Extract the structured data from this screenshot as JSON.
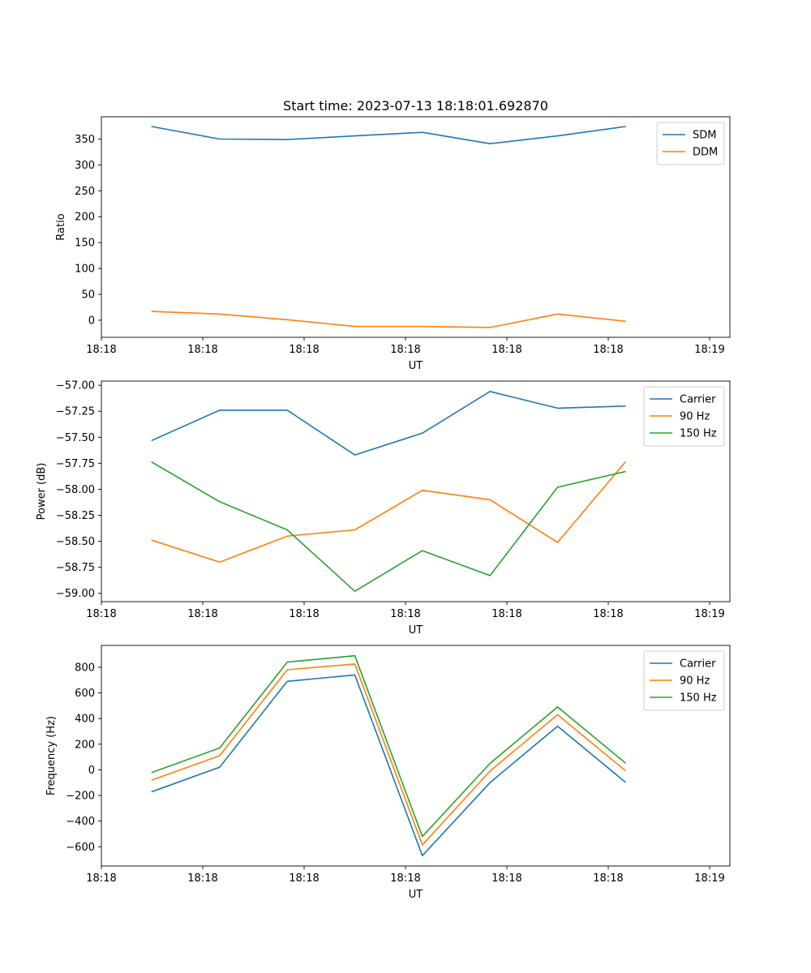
{
  "figure_title": "Start time: 2023-07-13 18:18:01.692870",
  "chart_data": [
    {
      "type": "line",
      "title": "Start time: 2023-07-13 18:18:01.692870",
      "xlabel": "UT",
      "ylabel": "Ratio",
      "xlim": [
        0,
        9.3
      ],
      "ylim": [
        -33,
        393
      ],
      "x": [
        0.75,
        1.75,
        2.75,
        3.75,
        4.75,
        5.75,
        6.75,
        7.75
      ],
      "xticks": [
        0,
        1.5,
        3,
        4.5,
        6,
        7.5,
        9
      ],
      "xtick_labels": [
        "18:18",
        "18:18",
        "18:18",
        "18:18",
        "18:18",
        "18:18",
        "18:19"
      ],
      "yticks": [
        0,
        50,
        100,
        150,
        200,
        250,
        300,
        350
      ],
      "ytick_labels": [
        "0",
        "50",
        "100",
        "150",
        "200",
        "250",
        "300",
        "350"
      ],
      "legend_position": "top-right",
      "series": [
        {
          "name": "SDM",
          "color": "#1f77b4",
          "values": [
            374,
            350,
            349,
            356,
            363,
            341,
            356,
            374
          ]
        },
        {
          "name": "DDM",
          "color": "#ff7f0e",
          "values": [
            17,
            12,
            1,
            -12,
            -12,
            -14,
            12,
            -2
          ]
        }
      ]
    },
    {
      "type": "line",
      "title": "",
      "xlabel": "UT",
      "ylabel": "Power (dB)",
      "xlim": [
        0,
        9.3
      ],
      "ylim": [
        -59.08,
        -56.96
      ],
      "x": [
        0.75,
        1.75,
        2.75,
        3.75,
        4.75,
        5.75,
        6.75,
        7.75
      ],
      "xticks": [
        0,
        1.5,
        3,
        4.5,
        6,
        7.5,
        9
      ],
      "xtick_labels": [
        "18:18",
        "18:18",
        "18:18",
        "18:18",
        "18:18",
        "18:18",
        "18:19"
      ],
      "yticks": [
        -59.0,
        -58.75,
        -58.5,
        -58.25,
        -58.0,
        -57.75,
        -57.5,
        -57.25,
        -57.0
      ],
      "ytick_labels": [
        "−59.00",
        "−58.75",
        "−58.50",
        "−58.25",
        "−58.00",
        "−57.75",
        "−57.50",
        "−57.25",
        "−57.00"
      ],
      "legend_position": "top-right",
      "series": [
        {
          "name": "Carrier",
          "color": "#1f77b4",
          "values": [
            -57.53,
            -57.24,
            -57.24,
            -57.67,
            -57.46,
            -57.06,
            -57.22,
            -57.2
          ]
        },
        {
          "name": "90 Hz",
          "color": "#ff7f0e",
          "values": [
            -58.49,
            -58.7,
            -58.45,
            -58.39,
            -58.01,
            -58.1,
            -58.51,
            -57.74
          ]
        },
        {
          "name": "150 Hz",
          "color": "#2ca02c",
          "values": [
            -57.74,
            -58.12,
            -58.39,
            -58.98,
            -58.59,
            -58.83,
            -57.98,
            -57.83
          ]
        }
      ]
    },
    {
      "type": "line",
      "title": "",
      "xlabel": "UT",
      "ylabel": "Frequency (Hz)",
      "xlim": [
        0,
        9.3
      ],
      "ylim": [
        -750,
        970
      ],
      "x": [
        0.75,
        1.75,
        2.75,
        3.75,
        4.75,
        5.75,
        6.75,
        7.75
      ],
      "xticks": [
        0,
        1.5,
        3,
        4.5,
        6,
        7.5,
        9
      ],
      "xtick_labels": [
        "18:18",
        "18:18",
        "18:18",
        "18:18",
        "18:18",
        "18:18",
        "18:19"
      ],
      "yticks": [
        -600,
        -400,
        -200,
        0,
        200,
        400,
        600,
        800
      ],
      "ytick_labels": [
        "−600",
        "−400",
        "−200",
        "0",
        "200",
        "400",
        "600",
        "800"
      ],
      "legend_position": "top-right",
      "series": [
        {
          "name": "Carrier",
          "color": "#1f77b4",
          "values": [
            -170,
            20,
            690,
            740,
            -670,
            -100,
            340,
            -95
          ]
        },
        {
          "name": "90 Hz",
          "color": "#ff7f0e",
          "values": [
            -80,
            110,
            780,
            825,
            -585,
            -10,
            430,
            -5
          ]
        },
        {
          "name": "150 Hz",
          "color": "#2ca02c",
          "values": [
            -20,
            170,
            840,
            890,
            -520,
            50,
            490,
            55
          ]
        }
      ]
    }
  ]
}
